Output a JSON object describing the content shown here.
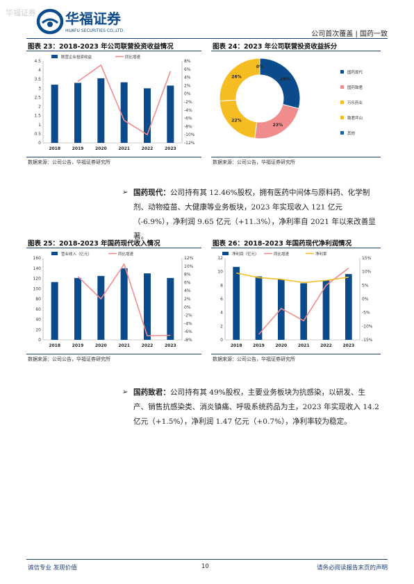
{
  "header": {
    "watermark": "华福证券",
    "logo_cn": "华福证券",
    "logo_en": "HUAFU SECURITIES CO.,LTD.",
    "right_text": "公司首次覆盖 | 国药一致"
  },
  "figures": [
    {
      "title": "图表 23：2018-2023 年公司联营投资收益情况",
      "source": "数据来源：公司公告，华福证券研究所"
    },
    {
      "title": "图表 24：2023 年公司联营投资收益拆分",
      "source": "数据来源：公司公告，华福证券研究所"
    },
    {
      "title": "图表 25：2018-2023 年国药现代收入情况",
      "source": "数据来源：公司公告，华福证券研究所"
    },
    {
      "title": "图表 26：2018-2023 年国药现代净利润情况",
      "source": "数据来源：公司公告，华福证券研究所"
    }
  ],
  "paragraphs": [
    {
      "name": "国药现代：",
      "text": "公司持有其 12.46%股权，拥有医药中间体与原料药、化学制剂、动物疫苗、大健康等业务板块，2023 年实现收入 121 亿元（-6.9%），净利润 9.65 亿元（+11.3%），净利率自 2021 年以来改善显著。"
    },
    {
      "name": "国药致君：",
      "text": "公司持有其 49%股权，主要业务板块为抗感染，以研发、生产、销售抗感染类、消炎镇痛、呼吸系统药品为主，2023 年实现收入 14.2 亿元（+1.5%），净利润 1.47 亿元（+0.7%），净利率较为稳定。"
    }
  ],
  "footer": {
    "left": "诚信专业  发现价值",
    "page": "10",
    "right": "请务必阅读报告末页的声明"
  },
  "colors": {
    "navy": "#0b4a8b",
    "pink": "#f08c8c",
    "yellow": "#f5bd22",
    "line_navy": "#1a3f77"
  },
  "chart_data": [
    {
      "type": "bar",
      "categories": [
        "2018",
        "2019",
        "2020",
        "2021",
        "2022",
        "2023"
      ],
      "series": [
        {
          "name": "联营企业投资收益",
          "type": "bar",
          "axis": "left",
          "values": [
            3.2,
            3.3,
            3.55,
            3.33,
            3.0,
            3.15
          ]
        },
        {
          "name": "同比增速",
          "type": "line",
          "axis": "right",
          "values": [
            null,
            3.0,
            7.0,
            -6.5,
            -10.0,
            5.5
          ]
        }
      ],
      "ylim": [
        0,
        4.5
      ],
      "yticks": [
        "0",
        "0.5",
        "1",
        "1.5",
        "2",
        "2.5",
        "3",
        "3.5",
        "4",
        "4.5"
      ],
      "y2lim": [
        -12,
        8
      ],
      "y2ticks": [
        "-12%",
        "-10%",
        "-8%",
        "-6%",
        "-4%",
        "-2%",
        "0%",
        "2%",
        "4%",
        "6%",
        "8%"
      ]
    },
    {
      "type": "pie",
      "categories": [
        "国药现代",
        "国药致君",
        "万乐药业",
        "致君坪山",
        "其他"
      ],
      "values": [
        29,
        23,
        22,
        26,
        0
      ],
      "labels": [
        "29%",
        "23%",
        "22%",
        "26%",
        "0%"
      ],
      "colors": [
        "#0b4a8b",
        "#f08c8c",
        "#f5bd22",
        "#f5bd22",
        "#1c5fa8"
      ]
    },
    {
      "type": "bar",
      "categories": [
        "2018",
        "2019",
        "2020",
        "2021",
        "2022",
        "2023"
      ],
      "series": [
        {
          "name": "营业收入（亿元）",
          "type": "bar",
          "axis": "left",
          "values": [
            113,
            121,
            125,
            140,
            130,
            121
          ]
        },
        {
          "name": "同比增速",
          "type": "line",
          "axis": "right",
          "values": [
            null,
            7.5,
            2.0,
            10.5,
            -7.0,
            -6.9
          ]
        }
      ],
      "ylim": [
        0,
        160
      ],
      "yticks": [
        "0",
        "20",
        "40",
        "60",
        "80",
        "100",
        "120",
        "140",
        "160"
      ],
      "y2lim": [
        -8,
        12
      ],
      "y2ticks": [
        "-8%",
        "-6%",
        "-4%",
        "-2%",
        "0%",
        "2%",
        "4%",
        "6%",
        "8%",
        "10%",
        "12%"
      ]
    },
    {
      "type": "bar",
      "categories": [
        "2018",
        "2019",
        "2020",
        "2021",
        "2022",
        "2023"
      ],
      "series": [
        {
          "name": "净利润（亿元）",
          "type": "bar",
          "axis": "left",
          "values": [
            10.7,
            9.3,
            8.9,
            8.3,
            8.7,
            9.65
          ]
        },
        {
          "name": "同比增速",
          "type": "line",
          "axis": "right",
          "values": [
            null,
            -13.0,
            -3.5,
            -8.0,
            5.0,
            11.3
          ]
        },
        {
          "name": "净利率",
          "type": "line",
          "axis": "right",
          "values": [
            9.5,
            7.8,
            7.2,
            6.0,
            6.8,
            8.0
          ]
        }
      ],
      "ylim": [
        0,
        12
      ],
      "yticks": [
        "0",
        "2",
        "4",
        "6",
        "8",
        "10",
        "12"
      ],
      "y2lim": [
        -15,
        15
      ],
      "y2ticks": [
        "-15%",
        "-10%",
        "-5%",
        "0%",
        "5%",
        "10%",
        "15%"
      ]
    }
  ]
}
